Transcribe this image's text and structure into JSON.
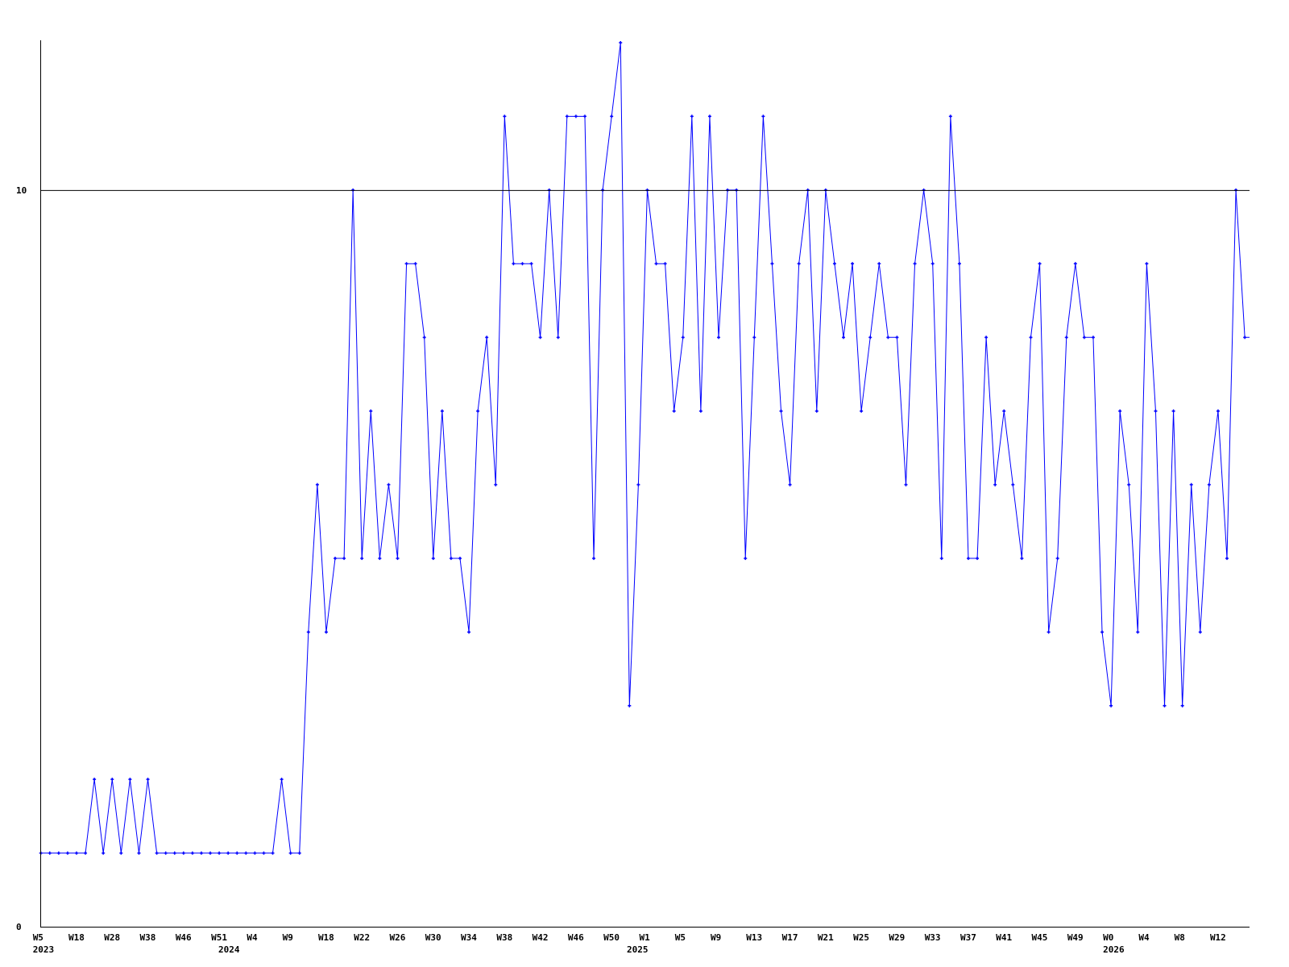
{
  "chart_data": {
    "type": "line",
    "title": "",
    "xlabel": "",
    "ylabel": "",
    "ylim": [
      0,
      12
    ],
    "y_ticks": [
      "0",
      "10"
    ],
    "reference_line": 10,
    "grid": false,
    "colors": {
      "series": "#0000ff",
      "axis": "#000000",
      "reference": "#000000"
    },
    "x_tick_labels": [
      "W5",
      "W18",
      "W28",
      "W38",
      "W46",
      "W51",
      "W4",
      "W9",
      "W18",
      "W22",
      "W26",
      "W30",
      "W34",
      "W38",
      "W42",
      "W46",
      "W50",
      "W1",
      "W5",
      "W9",
      "W13",
      "W17",
      "W21",
      "W25",
      "W29",
      "W33",
      "W37",
      "W41",
      "W45",
      "W49",
      "W0",
      "W4",
      "W8",
      "W12"
    ],
    "year_labels": [
      "2023",
      "2024",
      "2025",
      "2026"
    ],
    "values": [
      1,
      1,
      1,
      1,
      1,
      1,
      2,
      1,
      2,
      1,
      2,
      1,
      2,
      1,
      1,
      1,
      1,
      1,
      1,
      1,
      1,
      1,
      1,
      1,
      1,
      1,
      1,
      2,
      1,
      1,
      4,
      6,
      4,
      5,
      5,
      10,
      5,
      7,
      5,
      6,
      5,
      9,
      9,
      8,
      5,
      7,
      5,
      5,
      4,
      7,
      8,
      6,
      11,
      9,
      9,
      9,
      8,
      10,
      8,
      11,
      11,
      11,
      5,
      10,
      11,
      12,
      3,
      6,
      10,
      9,
      9,
      7,
      8,
      11,
      7,
      11,
      8,
      10,
      10,
      5,
      8,
      11,
      9,
      7,
      6,
      9,
      10,
      7,
      10,
      9,
      8,
      9,
      7,
      8,
      9,
      8,
      8,
      6,
      9,
      10,
      9,
      5,
      11,
      9,
      5,
      5,
      8,
      6,
      7,
      6,
      5,
      8,
      9,
      4,
      5,
      8,
      9,
      8,
      8,
      4,
      3,
      7,
      6,
      4,
      9,
      7,
      3,
      7,
      3,
      6,
      4,
      6,
      7,
      5,
      10,
      8
    ]
  }
}
